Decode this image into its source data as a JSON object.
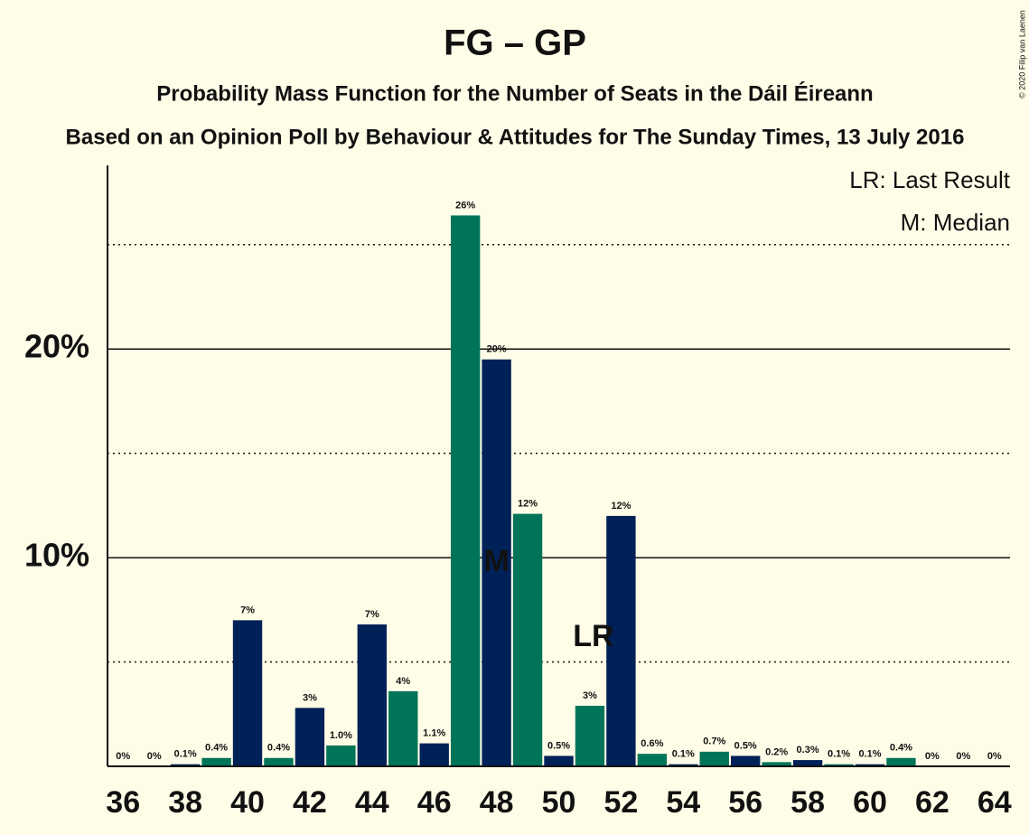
{
  "chart_data": {
    "type": "bar",
    "title": "FG – GP",
    "subtitle": "Probability Mass Function for the Number of Seats in the Dáil Éireann",
    "subtitle2": "Based on an Opinion Poll by Behaviour & Attitudes for The Sunday Times, 13 July 2016",
    "copyright": "© 2020 Filip van Laenen",
    "legend": [
      "LR: Last Result",
      "M: Median"
    ],
    "legend_position": "top-right",
    "x": [
      36,
      37,
      38,
      39,
      40,
      41,
      42,
      43,
      44,
      45,
      46,
      47,
      48,
      49,
      50,
      51,
      52,
      53,
      54,
      55,
      56,
      57,
      58,
      59,
      60,
      61,
      62,
      63,
      64
    ],
    "values": [
      0,
      0,
      0.1,
      0.4,
      7.0,
      0.4,
      2.8,
      1.0,
      6.8,
      3.6,
      1.1,
      26.4,
      19.5,
      12.1,
      0.5,
      2.9,
      12.0,
      0.6,
      0.1,
      0.7,
      0.5,
      0.2,
      0.3,
      0.1,
      0.1,
      0.4,
      0,
      0,
      0
    ],
    "value_labels": [
      "0%",
      "0%",
      "0.1%",
      "0.4%",
      "7%",
      "0.4%",
      "3%",
      "1.0%",
      "7%",
      "4%",
      "1.1%",
      "26%",
      "20%",
      "12%",
      "0.5%",
      "3%",
      "12%",
      "0.6%",
      "0.1%",
      "0.7%",
      "0.5%",
      "0.2%",
      "0.3%",
      "0.1%",
      "0.1%",
      "0.4%",
      "0%",
      "0%",
      "0%"
    ],
    "colors": [
      "#002157",
      "#007459"
    ],
    "annotations": [
      {
        "x": 48,
        "text": "M"
      },
      {
        "x": 51,
        "text": "LR"
      }
    ],
    "xlim": [
      35.5,
      64.5
    ],
    "xticks": [
      36,
      38,
      40,
      42,
      44,
      46,
      48,
      50,
      52,
      54,
      56,
      58,
      60,
      62,
      64
    ],
    "ylim": [
      0,
      28.8
    ],
    "yticks": [
      {
        "value": 10,
        "label": "10%"
      },
      {
        "value": 20,
        "label": "20%"
      }
    ],
    "minor_yticks": [
      5,
      15,
      25
    ],
    "grid": true
  }
}
